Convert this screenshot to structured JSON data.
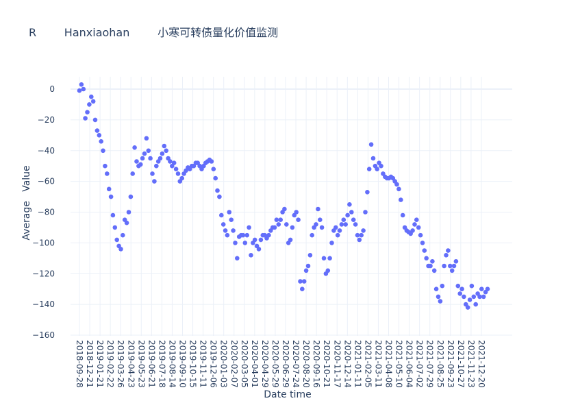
{
  "chart_data": {
    "type": "scatter",
    "title": "R        Hanxiaohan        小寒可转债量化价值监测",
    "xlabel": "Date time",
    "ylabel": "Average   Value",
    "x_axis_type": "category",
    "x_tick_labels": [
      "2018-09-28",
      "2018-12-21",
      "2019-01-21",
      "2019-02-22",
      "2019-03-26",
      "2019-04-23",
      "2019-05-23",
      "2019-06-21",
      "2019-07-18",
      "2019-08-14",
      "2019-09-10",
      "2019-10-15",
      "2019-11-11",
      "2019-12-06",
      "2020-01-03",
      "2020-02-07",
      "2020-03-05",
      "2020-04-01",
      "2020-04-29",
      "2020-05-29",
      "2020-06-29",
      "2020-07-24",
      "2020-08-20",
      "2020-09-16",
      "2020-10-21",
      "2020-11-17",
      "2020-12-14",
      "2021-01-11",
      "2021-02-05",
      "2021-03-11",
      "2021-04-08",
      "2021-05-10",
      "2021-06-04",
      "2021-07-02",
      "2021-07-29",
      "2021-08-25",
      "2021-09-23",
      "2021-10-27",
      "2021-11-23",
      "2021-12-20"
    ],
    "x_range_ticks": [
      0,
      39.6
    ],
    "y_ticks": [
      0,
      -20,
      -40,
      -60,
      -80,
      -100,
      -120,
      -140,
      -160
    ],
    "y_tick_labels": [
      "0",
      "−20",
      "−40",
      "−60",
      "−80",
      "−100",
      "−120",
      "−140",
      "−160"
    ],
    "ylim": [
      -162,
      8
    ],
    "grid": true,
    "marker_color": "#636efa",
    "values": [
      -1,
      3,
      0,
      -19,
      -15,
      -10,
      -5,
      -8,
      -20,
      -27,
      -30,
      -34,
      -40,
      -50,
      -55,
      -65,
      -70,
      -82,
      -90,
      -98,
      -102,
      -104,
      -95,
      -85,
      -87,
      -80,
      -70,
      -55,
      -38,
      -47,
      -50,
      -49,
      -45,
      -42,
      -32,
      -40,
      -45,
      -55,
      -60,
      -50,
      -47,
      -45,
      -42,
      -37,
      -40,
      -45,
      -47,
      -50,
      -48,
      -52,
      -55,
      -60,
      -58,
      -55,
      -53,
      -51,
      -52,
      -50,
      -50,
      -48,
      -48,
      -50,
      -52,
      -50,
      -48,
      -47,
      -46,
      -47,
      -52,
      -58,
      -66,
      -70,
      -82,
      -88,
      -92,
      -95,
      -80,
      -85,
      -92,
      -100,
      -110,
      -96,
      -95,
      -95,
      -100,
      -95,
      -90,
      -108,
      -100,
      -98,
      -102,
      -104,
      -98,
      -95,
      -95,
      -97,
      -95,
      -92,
      -90,
      -90,
      -85,
      -88,
      -85,
      -80,
      -78,
      -88,
      -100,
      -98,
      -90,
      -82,
      -80,
      -85,
      -125,
      -130,
      -125,
      -118,
      -115,
      -108,
      -95,
      -90,
      -88,
      -78,
      -85,
      -90,
      -110,
      -120,
      -118,
      -110,
      -100,
      -92,
      -90,
      -95,
      -92,
      -88,
      -85,
      -88,
      -82,
      -75,
      -80,
      -85,
      -88,
      -95,
      -98,
      -95,
      -92,
      -80,
      -67,
      -52,
      -36,
      -45,
      -50,
      -52,
      -48,
      -50,
      -55,
      -57,
      -58,
      -58,
      -57,
      -58,
      -60,
      -62,
      -65,
      -72,
      -82,
      -90,
      -92,
      -93,
      -94,
      -92,
      -88,
      -85,
      -90,
      -95,
      -100,
      -105,
      -110,
      -115,
      -115,
      -112,
      -118,
      -130,
      -135,
      -138,
      -128,
      -115,
      -108,
      -105,
      -115,
      -118,
      -115,
      -112,
      -128,
      -133,
      -130,
      -135,
      -140,
      -142,
      -137,
      -128,
      -135,
      -140,
      -133,
      -135,
      -130,
      -135,
      -132,
      -130
    ]
  }
}
